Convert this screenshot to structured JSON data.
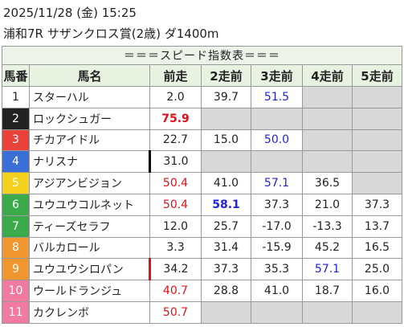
{
  "header": {
    "datetime": "2025/11/28 (金) 15:25",
    "race": "浦和7R サザンクロス賞(2歳) ダ1400m"
  },
  "table": {
    "title": "＝＝＝スピード指数表＝＝＝",
    "columns": [
      "馬番",
      "馬名",
      "前走",
      "2走前",
      "3走前",
      "4走前",
      "5走前"
    ],
    "rows": [
      {
        "num": "1",
        "frame_color": "#ffffff",
        "num_color": "#222222",
        "name": "スターハル",
        "values": [
          "2.0",
          "39.7",
          {
            "text": "51.5",
            "color": "#2222dd"
          },
          null,
          null
        ]
      },
      {
        "num": "2",
        "frame_color": "#222222",
        "num_color": "#ffffff",
        "name": "ロックシュガー",
        "values": [
          {
            "text": "75.9",
            "color": "#e0101a",
            "bold": true
          },
          null,
          null,
          null,
          null
        ]
      },
      {
        "num": "3",
        "frame_color": "#e8423a",
        "num_color": "#ffffff",
        "name": "チカアイドル",
        "values": [
          "22.7",
          "15.0",
          {
            "text": "50.0",
            "color": "#2222dd"
          },
          null,
          null
        ]
      },
      {
        "num": "4",
        "frame_color": "#3b6fd6",
        "num_color": "#ffffff",
        "name": "ナリスナ",
        "marker": "#000000",
        "values": [
          "31.0",
          null,
          null,
          null,
          null
        ]
      },
      {
        "num": "5",
        "frame_color": "#f2d21c",
        "num_color": "#ffffff",
        "name": "アジアンビジョン",
        "values": [
          {
            "text": "50.4",
            "color": "#e0101a"
          },
          "41.0",
          {
            "text": "57.1",
            "color": "#2222dd"
          },
          "36.5",
          null
        ]
      },
      {
        "num": "6",
        "frame_color": "#3aaa4a",
        "num_color": "#ffffff",
        "name": "ユウユウコルネット",
        "values": [
          {
            "text": "50.4",
            "color": "#e0101a"
          },
          {
            "text": "58.1",
            "color": "#2222dd",
            "bold": true
          },
          "37.3",
          "21.0",
          "37.3"
        ]
      },
      {
        "num": "7",
        "frame_color": "#3aaa4a",
        "num_color": "#ffffff",
        "name": "ティーズセラフ",
        "values": [
          "12.0",
          "25.7",
          "-17.0",
          "-13.3",
          "13.7"
        ]
      },
      {
        "num": "8",
        "frame_color": "#f0962e",
        "num_color": "#ffffff",
        "name": "バルカロール",
        "values": [
          "3.3",
          "31.4",
          "-15.9",
          "45.2",
          "16.5"
        ]
      },
      {
        "num": "9",
        "frame_color": "#f0962e",
        "num_color": "#ffffff",
        "name": "ユウユウシロパン",
        "marker": "#e0101a",
        "values": [
          "34.2",
          "37.3",
          "35.3",
          {
            "text": "57.1",
            "color": "#2222dd"
          },
          "25.0"
        ]
      },
      {
        "num": "10",
        "frame_color": "#f07aa0",
        "num_color": "#ffffff",
        "name": "ウールドランジュ",
        "values": [
          {
            "text": "40.7",
            "color": "#e0101a"
          },
          "28.8",
          "41.0",
          "18.7",
          "16.0"
        ]
      },
      {
        "num": "11",
        "frame_color": "#f07aa0",
        "num_color": "#ffffff",
        "name": "カクレンボ",
        "values": [
          {
            "text": "50.7",
            "color": "#e0101a"
          },
          null,
          null,
          null,
          null
        ]
      }
    ]
  }
}
